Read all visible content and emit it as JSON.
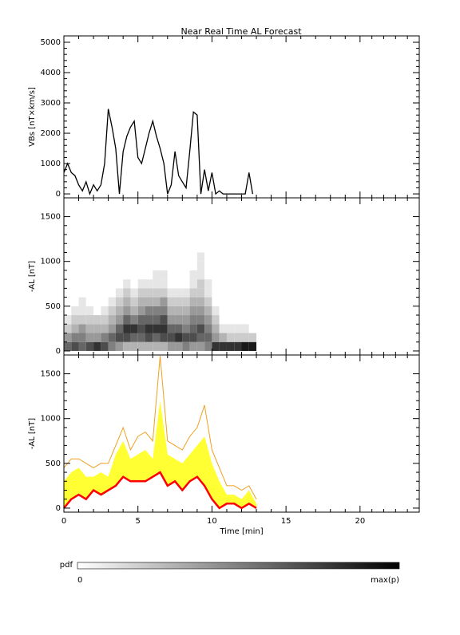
{
  "chart_data": [
    {
      "type": "line",
      "title": "Near Real Time AL Forecast",
      "ylabel": "VBs [nT×km/s]",
      "color": "#000000",
      "xlim": [
        0,
        24
      ],
      "xticks": [
        0,
        5,
        10,
        15,
        20
      ],
      "ylim": [
        -130,
        5210
      ],
      "yticks": [
        0,
        1000,
        2000,
        3000,
        4000,
        5000
      ],
      "x": [
        0,
        0.25,
        0.5,
        0.75,
        1,
        1.25,
        1.5,
        1.75,
        2,
        2.25,
        2.5,
        2.75,
        3,
        3.25,
        3.5,
        3.75,
        4,
        4.25,
        4.5,
        4.75,
        5,
        5.25,
        5.5,
        5.75,
        6,
        6.25,
        6.5,
        6.75,
        7,
        7.25,
        7.5,
        7.75,
        8,
        8.25,
        8.5,
        8.75,
        9,
        9.25,
        9.5,
        9.75,
        10,
        10.25,
        10.5,
        10.75,
        11,
        11.25,
        11.5,
        11.75,
        12,
        12.25,
        12.5,
        12.75
      ],
      "values": [
        700,
        1000,
        700,
        600,
        300,
        100,
        400,
        0,
        300,
        100,
        300,
        1000,
        2800,
        2200,
        1500,
        0,
        1400,
        1900,
        2200,
        2400,
        1200,
        1000,
        1500,
        2000,
        2400,
        1900,
        1500,
        1000,
        0,
        300,
        1400,
        600,
        400,
        200,
        1400,
        2700,
        2600,
        0,
        800,
        100,
        700,
        0,
        100,
        0,
        0,
        0,
        0,
        0,
        0,
        0,
        700,
        0
      ]
    },
    {
      "type": "heatmap",
      "ylabel": "-AL [nT]",
      "xlim": [
        0,
        24
      ],
      "xticks": [
        0,
        5,
        10,
        15,
        20
      ],
      "ylim": [
        -45,
        1710
      ],
      "yticks": [
        0,
        500,
        1000,
        1500
      ],
      "x_bins": [
        0,
        0.5,
        1,
        1.5,
        2,
        2.5,
        3,
        3.5,
        4,
        4.5,
        5,
        5.5,
        6,
        6.5,
        7,
        7.5,
        8,
        8.5,
        9,
        9.5,
        10,
        10.5,
        11,
        11.5,
        12,
        12.5,
        13
      ],
      "y_bins": [
        0,
        100,
        200,
        300,
        400,
        500,
        600,
        700,
        800,
        900,
        1000,
        1100,
        1200
      ],
      "pdf": [
        [
          0.6,
          0.4,
          0.2,
          0.1,
          0,
          0,
          0,
          0,
          0,
          0,
          0,
          0
        ],
        [
          0.7,
          0.5,
          0.3,
          0.2,
          0.1,
          0,
          0,
          0,
          0,
          0,
          0,
          0
        ],
        [
          0.6,
          0.5,
          0.4,
          0.2,
          0.1,
          0.1,
          0,
          0,
          0,
          0,
          0,
          0
        ],
        [
          0.7,
          0.4,
          0.3,
          0.2,
          0.1,
          0,
          0,
          0,
          0,
          0,
          0,
          0
        ],
        [
          0.8,
          0.4,
          0.3,
          0.2,
          0,
          0,
          0,
          0,
          0,
          0,
          0,
          0
        ],
        [
          0.7,
          0.5,
          0.3,
          0.2,
          0.1,
          0,
          0,
          0,
          0,
          0,
          0,
          0
        ],
        [
          0.5,
          0.6,
          0.4,
          0.3,
          0.2,
          0.1,
          0,
          0,
          0,
          0,
          0,
          0
        ],
        [
          0.4,
          0.7,
          0.6,
          0.4,
          0.3,
          0.2,
          0.1,
          0,
          0,
          0,
          0,
          0
        ],
        [
          0.3,
          0.7,
          0.8,
          0.6,
          0.4,
          0.3,
          0.2,
          0.1,
          0,
          0,
          0,
          0
        ],
        [
          0.3,
          0.6,
          0.8,
          0.5,
          0.3,
          0.2,
          0.1,
          0,
          0,
          0,
          0,
          0
        ],
        [
          0.3,
          0.6,
          0.7,
          0.6,
          0.4,
          0.3,
          0.2,
          0.1,
          0,
          0,
          0,
          0
        ],
        [
          0.3,
          0.7,
          0.8,
          0.6,
          0.5,
          0.3,
          0.2,
          0.1,
          0,
          0,
          0,
          0
        ],
        [
          0.3,
          0.6,
          0.8,
          0.6,
          0.5,
          0.3,
          0.2,
          0.1,
          0.1,
          0,
          0,
          0
        ],
        [
          0.3,
          0.7,
          0.8,
          0.7,
          0.5,
          0.4,
          0.2,
          0.1,
          0.1,
          0,
          0,
          0
        ],
        [
          0.4,
          0.7,
          0.6,
          0.4,
          0.3,
          0.2,
          0.1,
          0,
          0,
          0,
          0,
          0
        ],
        [
          0.4,
          0.8,
          0.6,
          0.4,
          0.3,
          0.2,
          0.1,
          0,
          0,
          0,
          0,
          0
        ],
        [
          0.5,
          0.7,
          0.5,
          0.4,
          0.3,
          0.2,
          0.1,
          0,
          0,
          0,
          0,
          0
        ],
        [
          0.4,
          0.7,
          0.6,
          0.5,
          0.4,
          0.3,
          0.2,
          0.1,
          0.1,
          0,
          0,
          0
        ],
        [
          0.4,
          0.6,
          0.7,
          0.5,
          0.4,
          0.3,
          0.2,
          0.2,
          0.1,
          0.1,
          0.1,
          0
        ],
        [
          0.5,
          0.6,
          0.5,
          0.4,
          0.3,
          0.2,
          0.1,
          0.1,
          0,
          0,
          0,
          0
        ],
        [
          0.8,
          0.4,
          0.3,
          0.2,
          0.1,
          0,
          0,
          0,
          0,
          0,
          0,
          0
        ],
        [
          0.8,
          0.3,
          0.1,
          0,
          0,
          0,
          0,
          0,
          0,
          0,
          0,
          0
        ],
        [
          0.8,
          0.2,
          0.1,
          0,
          0,
          0,
          0,
          0,
          0,
          0,
          0,
          0
        ],
        [
          0.8,
          0.2,
          0.1,
          0,
          0,
          0,
          0,
          0,
          0,
          0,
          0,
          0
        ],
        [
          0.9,
          0.2,
          0.1,
          0,
          0,
          0,
          0,
          0,
          0,
          0,
          0,
          0
        ],
        [
          0.9,
          0.2,
          0,
          0,
          0,
          0,
          0,
          0,
          0,
          0,
          0,
          0
        ]
      ]
    },
    {
      "type": "area",
      "ylabel": "-AL [nT]",
      "xlabel": "Time [min]",
      "xlim": [
        0,
        24
      ],
      "xticks": [
        0,
        5,
        10,
        15,
        20
      ],
      "ylim": [
        -45,
        1710
      ],
      "yticks": [
        0,
        500,
        1000,
        1500
      ],
      "x": [
        0,
        0.5,
        1,
        1.5,
        2,
        2.5,
        3,
        3.5,
        4,
        4.5,
        5,
        5.5,
        6,
        6.5,
        7,
        7.5,
        8,
        8.5,
        9,
        9.5,
        10,
        10.5,
        11,
        11.5,
        12,
        12.5,
        13
      ],
      "series": [
        {
          "color": "#f0a020",
          "values": [
            450,
            550,
            550,
            500,
            450,
            500,
            500,
            700,
            900,
            650,
            800,
            850,
            750,
            1700,
            750,
            700,
            650,
            800,
            900,
            1150,
            650,
            450,
            250,
            250,
            200,
            250,
            100
          ]
        },
        {
          "color": "#ffff33",
          "fill": true,
          "values": [
            300,
            400,
            450,
            350,
            350,
            400,
            350,
            600,
            750,
            550,
            600,
            650,
            550,
            1200,
            600,
            550,
            500,
            600,
            700,
            800,
            500,
            300,
            150,
            150,
            100,
            200,
            50
          ]
        },
        {
          "color": "#ff0000",
          "values": [
            0,
            100,
            150,
            100,
            200,
            150,
            200,
            250,
            350,
            300,
            300,
            300,
            350,
            400,
            250,
            300,
            200,
            300,
            350,
            250,
            100,
            0,
            50,
            50,
            0,
            50,
            0
          ]
        }
      ]
    }
  ],
  "colorbar": {
    "label": "pdf",
    "ticks": [
      0,
      {
        "value": 1,
        "label": "max(p)"
      }
    ]
  }
}
